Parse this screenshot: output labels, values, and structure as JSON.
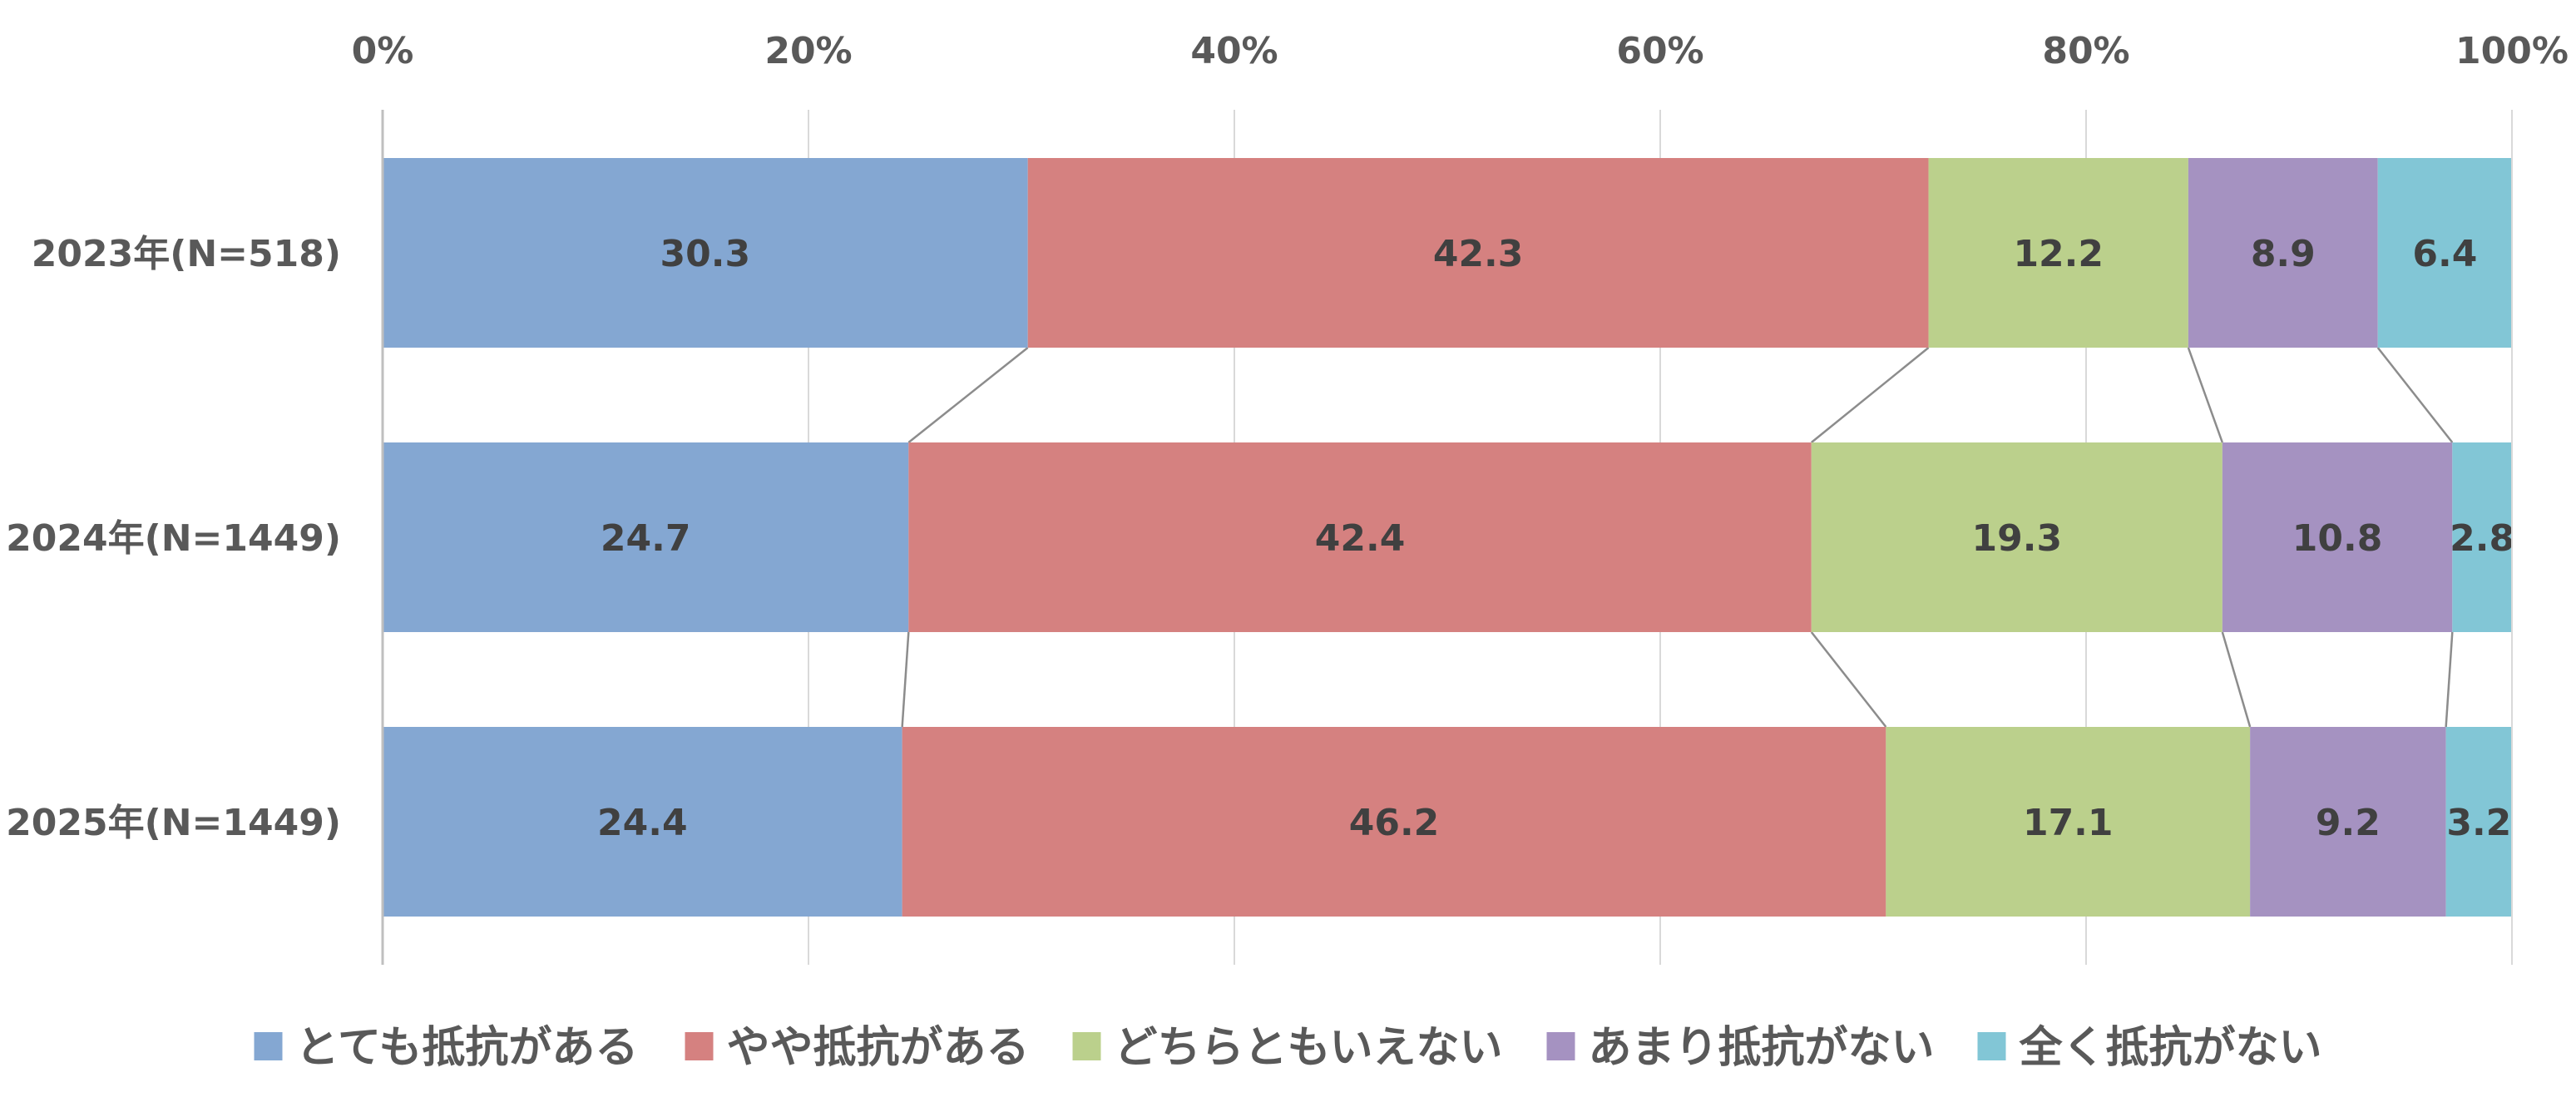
{
  "chart_data": {
    "type": "bar",
    "orientation": "horizontal",
    "stacked": "percent",
    "categories": [
      "2023年(N=518)",
      "2024年(N=1449)",
      "2025年(N=1449)"
    ],
    "series": [
      {
        "name": "とても抵抗がある",
        "color": "#84a7d2",
        "values": [
          30.3,
          24.7,
          24.4
        ]
      },
      {
        "name": "やや抵抗がある",
        "color": "#d58180",
        "values": [
          42.3,
          42.4,
          46.2
        ]
      },
      {
        "name": "どちらともいえない",
        "color": "#bbd08c",
        "values": [
          12.2,
          19.3,
          17.1
        ]
      },
      {
        "name": "あまり抵抗がない",
        "color": "#a592c1",
        "values": [
          8.9,
          10.8,
          9.2
        ]
      },
      {
        "name": "全く抵抗がない",
        "color": "#82c6d6",
        "values": [
          6.4,
          2.8,
          3.2
        ]
      }
    ],
    "data_labels": [
      [
        "30.3",
        "24.7",
        "24.4"
      ],
      [
        "42.3",
        "42.4",
        "46.2"
      ],
      [
        "12.2",
        "19.3",
        "17.1"
      ],
      [
        "8.9",
        "10.8",
        "9.2"
      ],
      [
        "6.4",
        "2.8",
        "3.2"
      ]
    ],
    "xlim": [
      0,
      100
    ],
    "xticks": [
      0,
      20,
      40,
      60,
      80,
      100
    ],
    "xtick_labels": [
      "0%",
      "20%",
      "40%",
      "60%",
      "80%",
      "100%"
    ],
    "x_axis_position": "top",
    "grid": true,
    "series_connector_lines": true,
    "legend_position": "bottom"
  }
}
